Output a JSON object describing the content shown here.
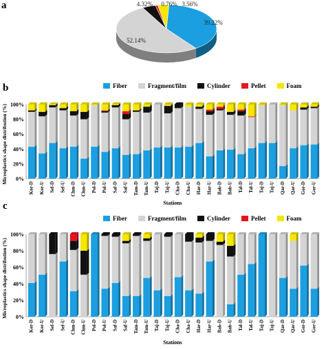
{
  "panel_labels": {
    "a": "a",
    "b": "b",
    "c": "c"
  },
  "colors": {
    "Fiber": "#1b9fe0",
    "Fragment/film": "#d4d4d4",
    "Cylinder": "#111111",
    "Pellet": "#e8141c",
    "Foam": "#f6e600"
  },
  "chart_data": [
    {
      "type": "pie",
      "title": "",
      "labels": [
        "Fiber",
        "Fragment/film",
        "Cylinder",
        "Pellet",
        "Foam"
      ],
      "values": [
        39.22,
        52.14,
        4.32,
        0.76,
        3.56
      ],
      "value_labels": [
        "39.22%",
        "52.14%",
        "4.32%",
        "0.76%",
        "3.56%"
      ],
      "legend": {
        "placement": "bottom",
        "entries": [
          "Fiber",
          "Fragment/film",
          "Cylinder",
          "Pellet",
          "Foam"
        ]
      }
    },
    {
      "type": "bar",
      "stacked": true,
      "title": "",
      "xlabel": "Stations",
      "ylabel": "Microplastics shape distribution (%)",
      "ylim": [
        0,
        100
      ],
      "yticks": [
        "0%",
        "20%",
        "40%",
        "60%",
        "80%",
        "100%"
      ],
      "grid": false,
      "categories": [
        "Kor-D",
        "Kor-U",
        "Sef-D",
        "Sef-U",
        "Chm-D",
        "Chm-U",
        "Pol-D",
        "Pol-U",
        "Saf-D",
        "Saf-U",
        "Tam-D",
        "Tam-U",
        "Taj-D",
        "Taj-U",
        "Cha-D",
        "Cha-U",
        "Har-D",
        "Har-U",
        "Bab-D",
        "Bab-U",
        "Tal-D",
        "Tal-U",
        "Taj-D",
        "Taj-U",
        "Qar-D",
        "Qar-U",
        "Gor-D",
        "Gor-U"
      ],
      "series": [
        {
          "name": "Fiber",
          "values": [
            43,
            34,
            48,
            41,
            43,
            27,
            43,
            36,
            41,
            32,
            33,
            38,
            42,
            42,
            42,
            43,
            48,
            30,
            38,
            39,
            33,
            41,
            48,
            48,
            17,
            41,
            45,
            46
          ]
        },
        {
          "name": "Fragment/film",
          "values": [
            47,
            50,
            48,
            51,
            42,
            53,
            56,
            53,
            55,
            48,
            57,
            51,
            58,
            46,
            53,
            54,
            46,
            56,
            54,
            47,
            52,
            42,
            51,
            52,
            82,
            51,
            48,
            49
          ]
        },
        {
          "name": "Cylinder",
          "values": [
            2,
            6,
            3,
            3,
            6,
            10,
            0,
            2,
            3,
            7,
            2,
            8,
            0,
            10,
            5,
            0,
            3,
            5,
            2,
            4,
            6,
            0,
            0,
            0,
            0,
            0,
            3,
            2
          ]
        },
        {
          "name": "Pellet",
          "values": [
            0,
            0,
            0,
            0,
            0,
            0,
            0,
            1,
            0,
            4,
            0,
            0,
            0,
            0,
            0,
            0,
            0,
            2,
            3,
            0,
            2,
            1,
            0,
            0,
            0,
            0,
            0,
            0
          ]
        },
        {
          "name": "Foam",
          "values": [
            8,
            10,
            1,
            5,
            9,
            10,
            1,
            8,
            1,
            9,
            8,
            3,
            0,
            2,
            0,
            3,
            3,
            7,
            3,
            10,
            7,
            16,
            1,
            0,
            1,
            8,
            4,
            3
          ]
        }
      ],
      "legend": {
        "placement": "top",
        "entries": [
          "Fiber",
          "Fragment/film",
          "Cylinder",
          "Pellet",
          "Foam"
        ]
      }
    },
    {
      "type": "bar",
      "stacked": true,
      "title": "",
      "xlabel": "Stations",
      "ylabel": "Microplastics shape distribution (%)",
      "ylim": [
        0,
        100
      ],
      "yticks": [
        "0%",
        "20%",
        "40%",
        "60%",
        "80%",
        "100%"
      ],
      "grid": false,
      "categories": [
        "Kor-D",
        "Kor-U",
        "Sef-D",
        "Sef-U",
        "Chm-D",
        "Chm-U",
        "Pol-D",
        "Pol-U",
        "Saf-D",
        "Saf-U",
        "Tam-D",
        "Tam-U",
        "Taj-D",
        "Taj-U",
        "Cha-D",
        "Cha-U",
        "Har-D",
        "Har-U",
        "Bab-D",
        "Bab-U",
        "Tal-D",
        "Tal-U",
        "Taj-D",
        "Taj-U",
        "Qar-D",
        "Qar-U",
        "Gor-D",
        "Gor-U"
      ],
      "series": [
        {
          "name": "Fiber",
          "values": [
            41,
            51,
            0,
            67,
            31,
            0,
            100,
            34,
            41,
            25,
            25,
            47,
            32,
            25,
            48,
            32,
            28,
            67,
            0,
            15,
            51,
            64,
            100,
            0,
            47,
            34,
            62,
            34
          ]
        },
        {
          "name": "Fragment/film",
          "values": [
            59,
            49,
            76,
            33,
            50,
            51,
            0,
            64,
            56,
            64,
            73,
            45,
            68,
            72,
            52,
            59,
            62,
            25,
            87,
            58,
            49,
            36,
            0,
            100,
            53,
            58,
            38,
            66
          ]
        },
        {
          "name": "Cylinder",
          "values": [
            0,
            0,
            24,
            0,
            11,
            29,
            0,
            2,
            3,
            3,
            2,
            3,
            0,
            3,
            0,
            9,
            6,
            8,
            4,
            13,
            0,
            0,
            0,
            0,
            0,
            0,
            0,
            0
          ]
        },
        {
          "name": "Pellet",
          "values": [
            0,
            0,
            0,
            0,
            8,
            0,
            0,
            0,
            0,
            0,
            0,
            0,
            0,
            0,
            0,
            0,
            0,
            0,
            0,
            0,
            0,
            0,
            0,
            0,
            0,
            0,
            0,
            0
          ]
        },
        {
          "name": "Foam",
          "values": [
            0,
            0,
            0,
            0,
            0,
            20,
            0,
            0,
            0,
            8,
            0,
            5,
            0,
            0,
            0,
            0,
            4,
            0,
            9,
            14,
            0,
            0,
            0,
            0,
            0,
            8,
            0,
            0
          ]
        }
      ],
      "legend": {
        "placement": "top",
        "entries": [
          "Fiber",
          "Fragment/film",
          "Cylinder",
          "Pellet",
          "Foam"
        ]
      }
    }
  ]
}
